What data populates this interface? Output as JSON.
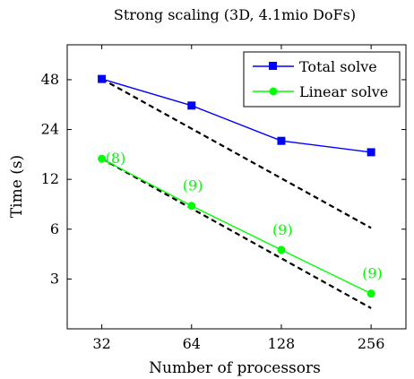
{
  "chart_data": {
    "type": "line",
    "title": "Strong scaling (3D, 4.1mio DoFs)",
    "xlabel": "Number of processors",
    "ylabel": "Time (s)",
    "x_scale": "log2",
    "y_scale": "log2",
    "x_ticks": [
      32,
      64,
      128,
      256
    ],
    "x_tick_labels": [
      "32",
      "64",
      "128",
      "256"
    ],
    "y_ticks": [
      3,
      6,
      12,
      24,
      48
    ],
    "y_tick_labels": [
      "3",
      "6",
      "12",
      "24",
      "48"
    ],
    "xlim": [
      24.5,
      335
    ],
    "ylim": [
      1.5,
      78
    ],
    "grid": false,
    "legend_position": "top-right",
    "colors": {
      "total": "#0000ff",
      "linear": "#00ff00",
      "ideal": "#000000"
    },
    "series": [
      {
        "name": "Total solve",
        "marker": "square",
        "color": "#0000ff",
        "x": [
          32,
          64,
          128,
          256
        ],
        "y": [
          48.5,
          33.5,
          20.5,
          17.5
        ]
      },
      {
        "name": "Linear solve",
        "marker": "circle",
        "color": "#00ff00",
        "x": [
          32,
          64,
          128,
          256
        ],
        "y": [
          16,
          8.3,
          4.5,
          2.45
        ],
        "labels": [
          "(8)",
          "(9)",
          "(9)",
          "(9)"
        ]
      }
    ],
    "ideal_lines": [
      {
        "style": "dashed",
        "x": [
          32,
          256
        ],
        "y": [
          48.5,
          6.1
        ]
      },
      {
        "style": "dashed",
        "x": [
          32,
          256
        ],
        "y": [
          16,
          2.0
        ]
      }
    ]
  }
}
